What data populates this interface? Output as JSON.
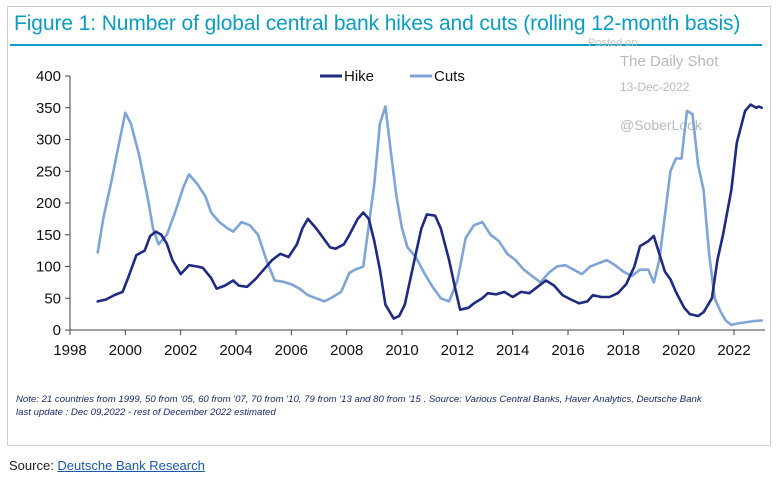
{
  "chart_data": {
    "type": "line",
    "title": "Figure 1: Number of global central bank hikes and cuts (rolling 12-month basis)",
    "xlabel": "",
    "ylabel": "",
    "xlim": [
      1998,
      2023.3
    ],
    "ylim": [
      0,
      400
    ],
    "x_ticks": [
      "1998",
      "2000",
      "2002",
      "2004",
      "2006",
      "2008",
      "2010",
      "2012",
      "2014",
      "2016",
      "2018",
      "2020",
      "2022"
    ],
    "y_ticks": [
      "0",
      "50",
      "100",
      "150",
      "200",
      "250",
      "300",
      "350",
      "400"
    ],
    "grid": false,
    "legend_position": "top-center",
    "series": [
      {
        "name": "Hike",
        "color": "#1f2a80",
        "x": [
          1999,
          1999.3,
          1999.6,
          1999.9,
          2000.1,
          2000.4,
          2000.7,
          2000.9,
          2001.1,
          2001.3,
          2001.5,
          2001.7,
          2002.0,
          2002.3,
          2002.6,
          2002.8,
          2003.1,
          2003.3,
          2003.6,
          2003.9,
          2004.1,
          2004.4,
          2004.7,
          2005.0,
          2005.3,
          2005.6,
          2005.9,
          2006.2,
          2006.4,
          2006.6,
          2006.9,
          2007.1,
          2007.4,
          2007.6,
          2007.9,
          2008.1,
          2008.4,
          2008.6,
          2008.8,
          2009.0,
          2009.2,
          2009.4,
          2009.7,
          2009.9,
          2010.1,
          2010.3,
          2010.5,
          2010.7,
          2010.9,
          2011.2,
          2011.4,
          2011.7,
          2011.9,
          2012.1,
          2012.4,
          2012.6,
          2012.9,
          2013.1,
          2013.4,
          2013.7,
          2014.0,
          2014.3,
          2014.6,
          2014.9,
          2015.2,
          2015.5,
          2015.8,
          2016.1,
          2016.4,
          2016.7,
          2016.9,
          2017.2,
          2017.5,
          2017.8,
          2018.1,
          2018.4,
          2018.6,
          2018.9,
          2019.1,
          2019.3,
          2019.5,
          2019.7,
          2019.9,
          2020.2,
          2020.4,
          2020.7,
          2020.9,
          2021.2,
          2021.4,
          2021.6,
          2021.9,
          2022.1,
          2022.4,
          2022.6,
          2022.8,
          2022.9,
          2023.0
        ],
        "values": [
          45,
          48,
          55,
          60,
          82,
          118,
          125,
          148,
          155,
          150,
          136,
          110,
          88,
          102,
          100,
          98,
          82,
          65,
          70,
          78,
          70,
          68,
          80,
          95,
          110,
          120,
          115,
          135,
          160,
          175,
          160,
          148,
          130,
          128,
          135,
          150,
          175,
          185,
          175,
          140,
          95,
          40,
          18,
          22,
          40,
          80,
          120,
          160,
          182,
          180,
          160,
          110,
          70,
          32,
          35,
          42,
          50,
          58,
          56,
          60,
          52,
          60,
          58,
          68,
          78,
          70,
          55,
          48,
          42,
          45,
          55,
          52,
          52,
          58,
          72,
          100,
          132,
          140,
          148,
          120,
          92,
          80,
          60,
          35,
          25,
          22,
          28,
          50,
          110,
          150,
          220,
          295,
          345,
          355,
          350,
          352,
          350
        ]
      },
      {
        "name": "Cuts",
        "color": "#7fa4d6",
        "x": [
          1999,
          1999.2,
          1999.5,
          1999.8,
          2000.0,
          2000.2,
          2000.5,
          2000.8,
          2001.0,
          2001.2,
          2001.5,
          2001.8,
          2002.1,
          2002.3,
          2002.6,
          2002.9,
          2003.1,
          2003.4,
          2003.7,
          2003.9,
          2004.2,
          2004.5,
          2004.8,
          2005.1,
          2005.4,
          2005.7,
          2006.0,
          2006.3,
          2006.6,
          2006.9,
          2007.2,
          2007.5,
          2007.8,
          2008.1,
          2008.3,
          2008.6,
          2008.8,
          2009.0,
          2009.2,
          2009.4,
          2009.6,
          2009.8,
          2010.0,
          2010.2,
          2010.5,
          2010.8,
          2011.1,
          2011.4,
          2011.7,
          2012.0,
          2012.3,
          2012.6,
          2012.9,
          2013.2,
          2013.5,
          2013.8,
          2014.1,
          2014.4,
          2014.7,
          2015.0,
          2015.3,
          2015.6,
          2015.9,
          2016.2,
          2016.5,
          2016.8,
          2017.1,
          2017.4,
          2017.7,
          2018.0,
          2018.3,
          2018.6,
          2018.9,
          2019.1,
          2019.3,
          2019.5,
          2019.7,
          2019.9,
          2020.1,
          2020.3,
          2020.5,
          2020.7,
          2020.9,
          2021.1,
          2021.3,
          2021.5,
          2021.7,
          2021.9,
          2022.1,
          2022.4,
          2022.7,
          2023.0
        ],
        "values": [
          122,
          175,
          235,
          300,
          342,
          325,
          275,
          210,
          160,
          135,
          150,
          185,
          225,
          245,
          230,
          210,
          185,
          170,
          160,
          155,
          170,
          165,
          150,
          110,
          78,
          76,
          72,
          65,
          55,
          50,
          45,
          52,
          60,
          90,
          95,
          100,
          165,
          230,
          325,
          352,
          280,
          210,
          160,
          130,
          115,
          90,
          68,
          50,
          45,
          78,
          145,
          165,
          170,
          150,
          140,
          120,
          110,
          95,
          85,
          75,
          90,
          100,
          102,
          95,
          88,
          100,
          105,
          110,
          102,
          92,
          85,
          95,
          95,
          75,
          110,
          180,
          250,
          270,
          270,
          345,
          340,
          260,
          220,
          120,
          50,
          30,
          15,
          8,
          10,
          12,
          14,
          15
        ]
      }
    ]
  },
  "watermark": {
    "posted": "Posted on",
    "outlet": "The Daily Shot",
    "date": "13-Dec-2022",
    "handle": "@SoberLook"
  },
  "note": {
    "line1": "Note: 21 countries from 1999, 50 from '05, 60 from '07, 70 from '10, 79 from '13 and 80 from '15 . Source: Various Central Banks, Haver Analytics, Deutsche Bank",
    "line2": "last update : Dec 09,2022 - rest of December 2022 estimated"
  },
  "source": {
    "prefix": "Source: ",
    "link_text": "Deutsche Bank Research"
  }
}
